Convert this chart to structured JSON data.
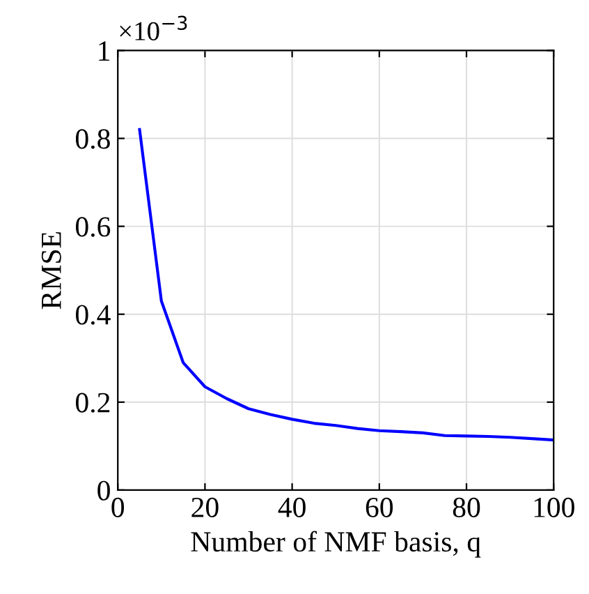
{
  "chart_data": {
    "type": "line",
    "x": [
      5,
      10,
      15,
      20,
      25,
      30,
      35,
      40,
      45,
      50,
      55,
      60,
      65,
      70,
      75,
      80,
      85,
      90,
      95,
      100
    ],
    "series": [
      {
        "color": "#0000ff",
        "values": [
          0.82,
          0.43,
          0.29,
          0.235,
          0.208,
          0.185,
          0.172,
          0.161,
          0.152,
          0.147,
          0.14,
          0.135,
          0.133,
          0.13,
          0.124,
          0.123,
          0.122,
          0.12,
          0.117,
          0.114
        ]
      }
    ],
    "xlabel": "Number of NMF basis, q",
    "ylabel": "RMSE",
    "annotations": [
      "×10$^{−3}$"
    ],
    "xlim": [
      0,
      100
    ],
    "xticks": [
      0,
      20,
      40,
      60,
      80,
      100
    ],
    "ylim": [
      0,
      1
    ],
    "yticks": [
      0,
      0.2,
      0.4,
      0.6,
      0.8,
      1
    ],
    "grid": true,
    "marker": "none",
    "line_style": "solid"
  }
}
